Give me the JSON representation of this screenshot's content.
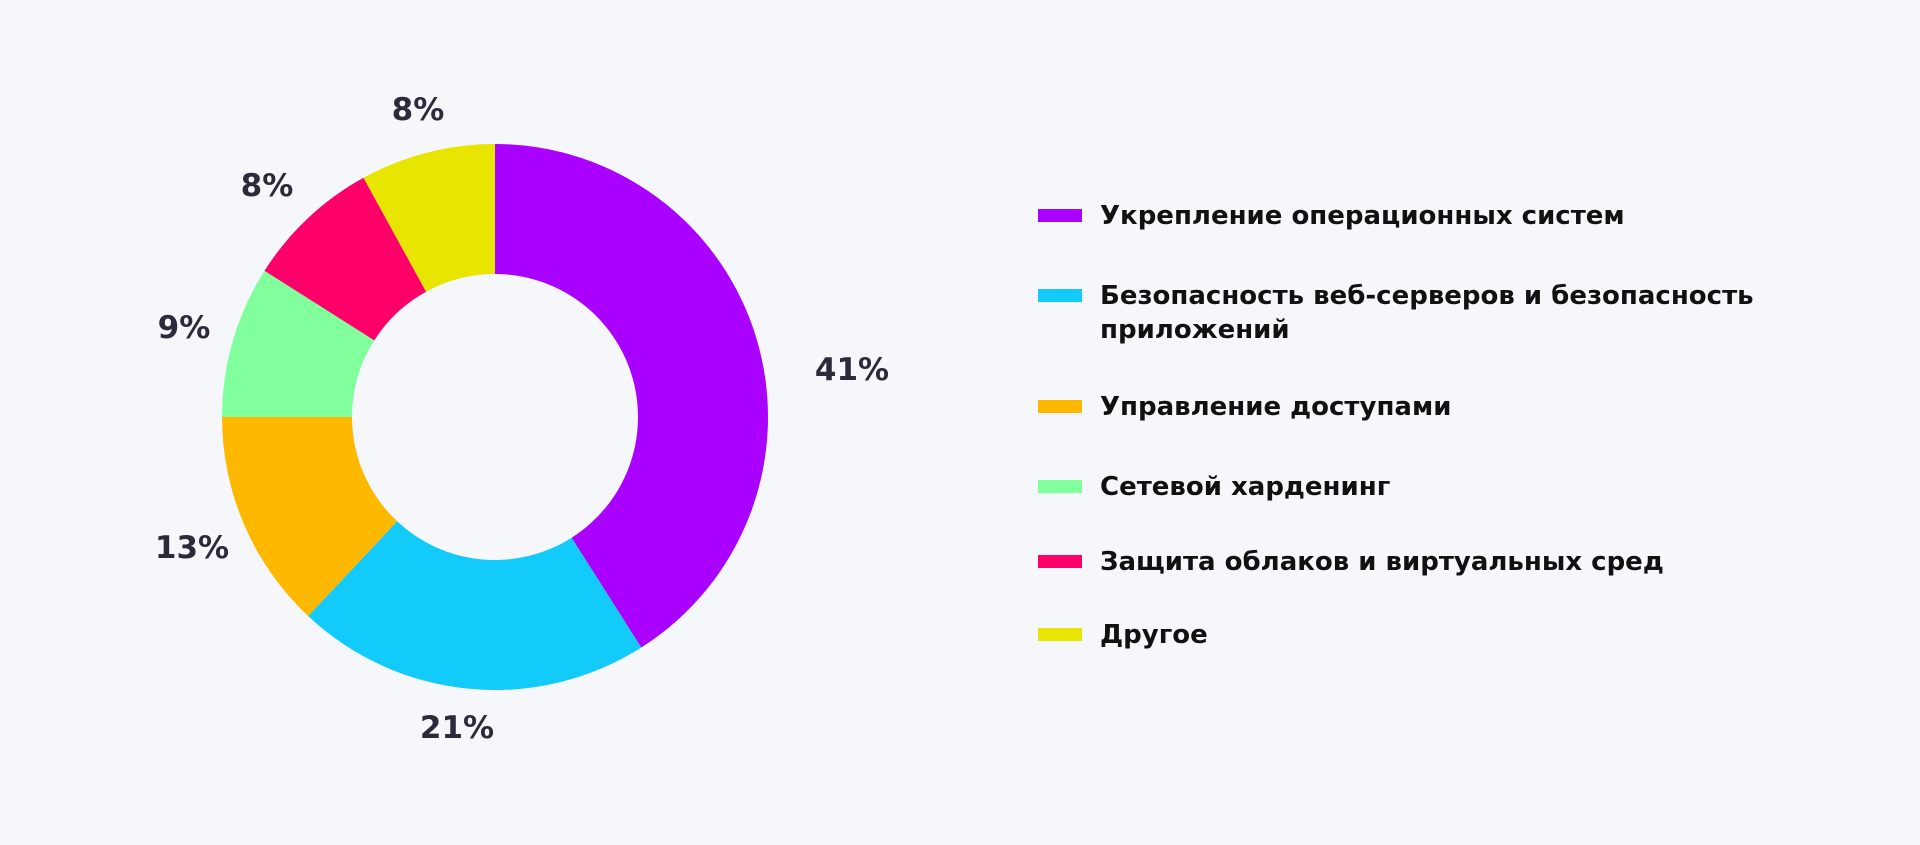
{
  "chart_data": {
    "type": "pie",
    "variant": "donut",
    "title": "",
    "categories": [
      "Укрепление операционных систем",
      "Безопасность веб-серверов и безопасность приложений",
      "Управление доступами",
      "Сетевой харденинг",
      "Защита облаков и виртуальных сред",
      "Другое"
    ],
    "values": [
      41,
      21,
      13,
      9,
      8,
      8
    ],
    "labels": [
      "41%",
      "21%",
      "13%",
      "9%",
      "8%",
      "8%"
    ],
    "colors": [
      "#aa00ff",
      "#12cbfb",
      "#ffb800",
      "#80ff9c",
      "#ff006a",
      "#e8e600"
    ],
    "legend_position": "right",
    "start": "top, clockwise"
  }
}
